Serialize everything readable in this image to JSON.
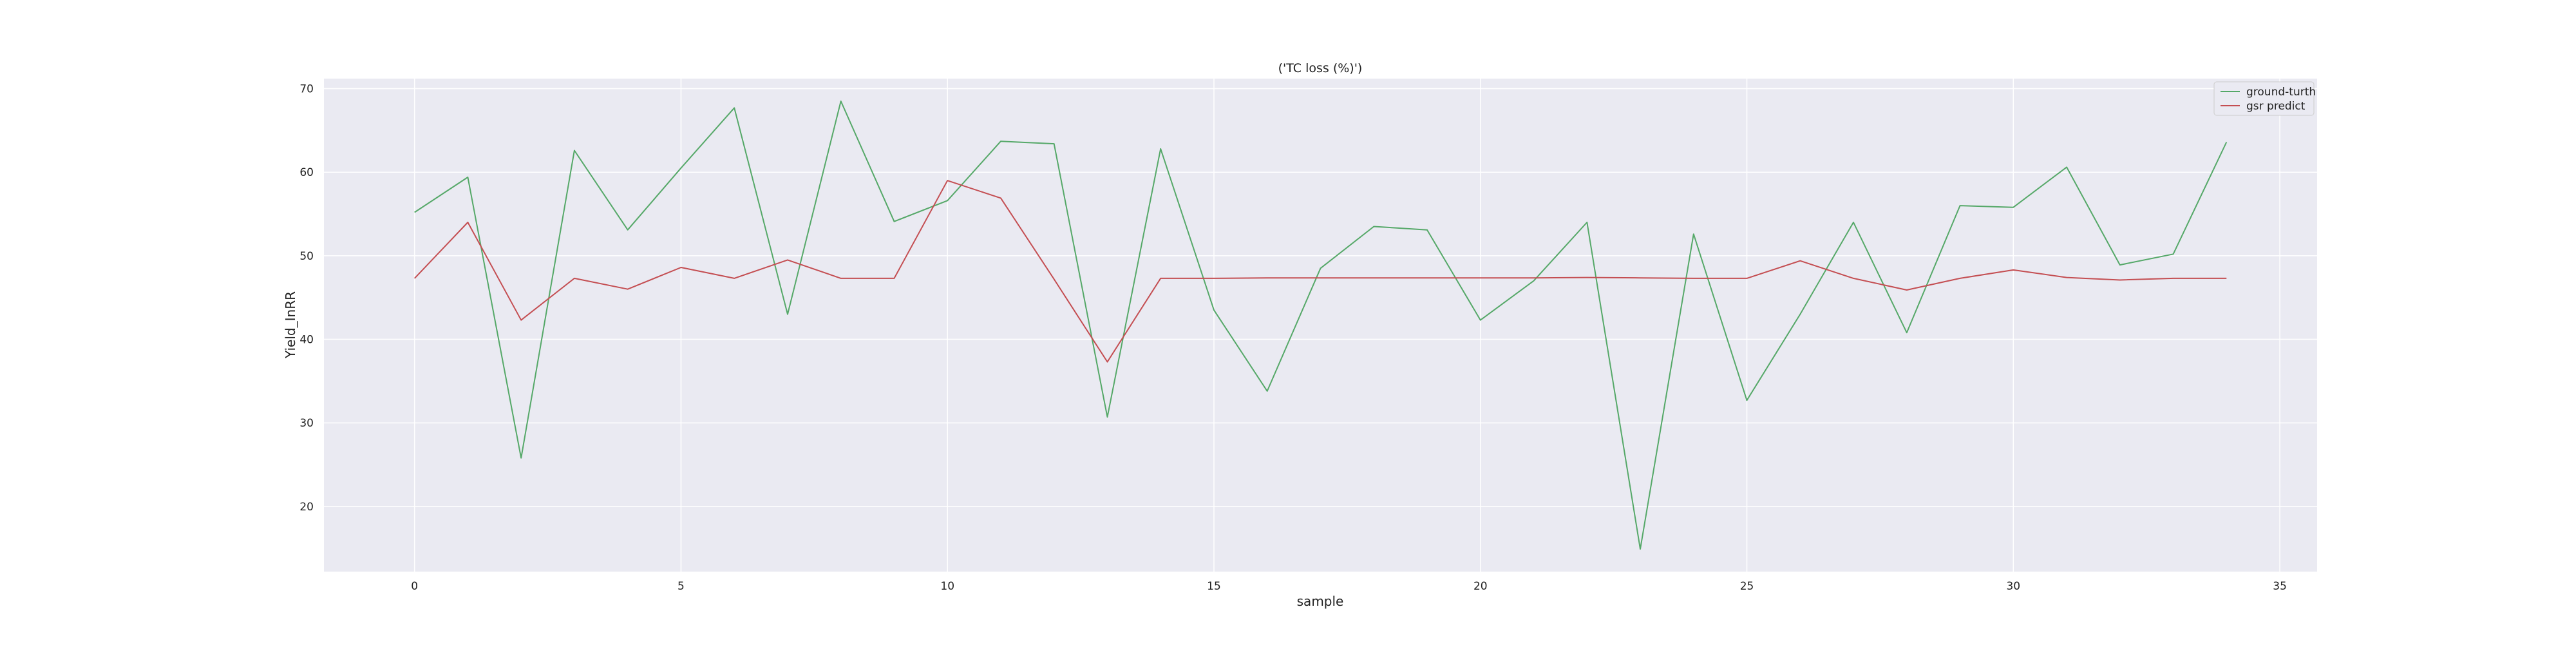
{
  "chart_data": {
    "type": "line",
    "title": "('TC loss (%)')",
    "xlabel": "sample",
    "ylabel": "Yield_InRR",
    "xlim": [
      -1.7,
      35.7
    ],
    "ylim": [
      12.2,
      71.2
    ],
    "xticks": [
      0,
      5,
      10,
      15,
      20,
      25,
      30,
      35
    ],
    "yticks": [
      20,
      30,
      40,
      50,
      60,
      70
    ],
    "grid": true,
    "legend_position": "top-right",
    "x": [
      0,
      1,
      2,
      3,
      4,
      5,
      6,
      7,
      8,
      9,
      10,
      11,
      12,
      13,
      14,
      15,
      16,
      17,
      18,
      19,
      20,
      21,
      22,
      23,
      24,
      25,
      26,
      27,
      28,
      29,
      30,
      31,
      32,
      33,
      34
    ],
    "series": [
      {
        "name": "ground-turth",
        "color": "#55a868",
        "values": [
          55.2,
          59.4,
          25.8,
          62.6,
          53.1,
          60.5,
          67.7,
          43.0,
          68.5,
          54.1,
          56.6,
          63.7,
          63.4,
          30.7,
          62.8,
          43.5,
          33.8,
          48.5,
          53.5,
          53.1,
          42.3,
          47.0,
          54.0,
          14.9,
          52.6,
          32.7,
          43.0,
          54.0,
          40.8,
          56.0,
          55.8,
          60.6,
          48.9,
          50.2,
          63.6
        ]
      },
      {
        "name": "gsr predict",
        "color": "#c44e52",
        "values": [
          47.3,
          54.0,
          42.3,
          47.3,
          46.0,
          48.6,
          47.3,
          49.5,
          47.3,
          47.3,
          59.0,
          56.9,
          47.2,
          37.3,
          47.3,
          47.3,
          47.35,
          47.35,
          47.35,
          47.35,
          47.35,
          47.35,
          47.4,
          47.35,
          47.3,
          47.3,
          49.4,
          47.3,
          45.9,
          47.3,
          48.3,
          47.4,
          47.1,
          47.3,
          47.3
        ]
      }
    ]
  }
}
